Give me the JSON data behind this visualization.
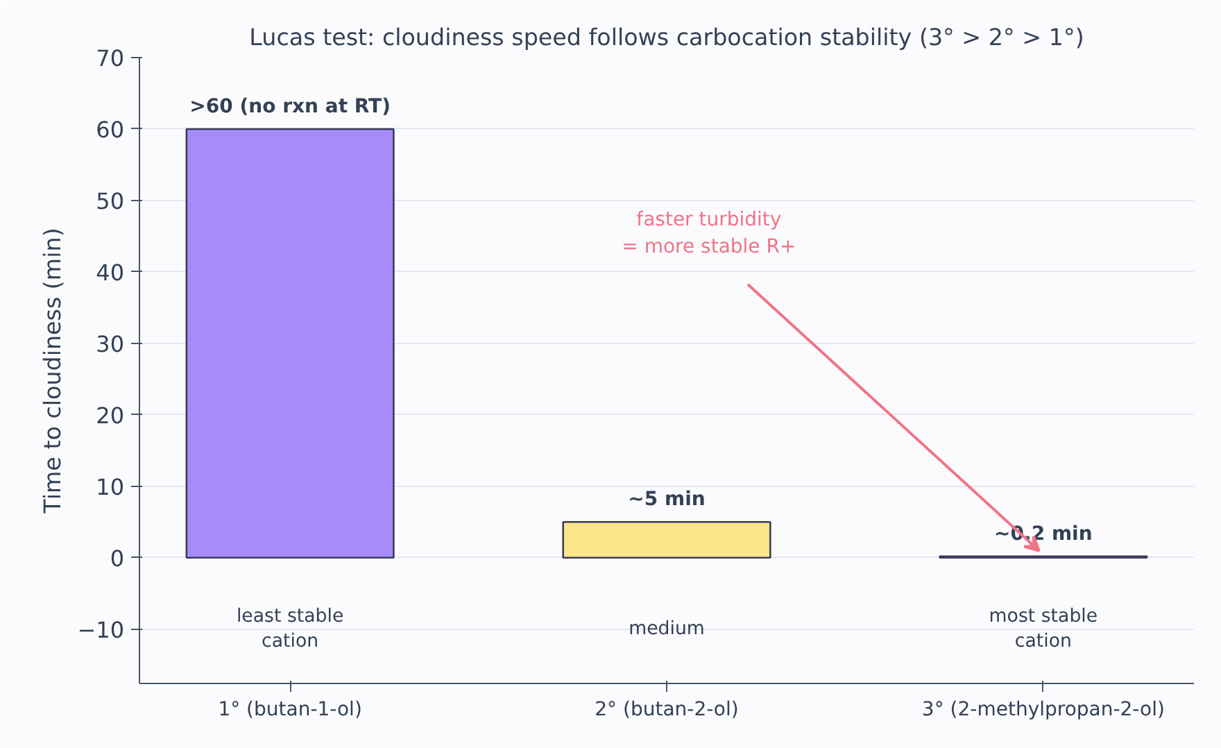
{
  "chart_data": {
    "type": "bar",
    "title": "Lucas test: cloudiness speed follows carbocation stability (3° > 2° > 1°)",
    "ylabel": "Time to cloudiness (min)",
    "categories": [
      "1° (butan-1-ol)",
      "2° (butan-2-ol)",
      "3° (2-methylpropan-2-ol)"
    ],
    "values": [
      60,
      5,
      0.2
    ],
    "colors": [
      "#a78bfa",
      "#fde68a",
      "#334155"
    ],
    "value_labels": [
      ">60 (no rxn at RT)",
      "~5 min",
      "~0.2 min"
    ],
    "ylim": [
      -17.6,
      70
    ],
    "yticks": [
      {
        "value": -10,
        "label": "−10"
      },
      0,
      10,
      20,
      30,
      40,
      50,
      60,
      70
    ],
    "grid": "y",
    "annotations": [
      "least stable\ncation",
      "medium",
      "most stable\ncation",
      "faster turbidity\n= more stable R+"
    ]
  }
}
